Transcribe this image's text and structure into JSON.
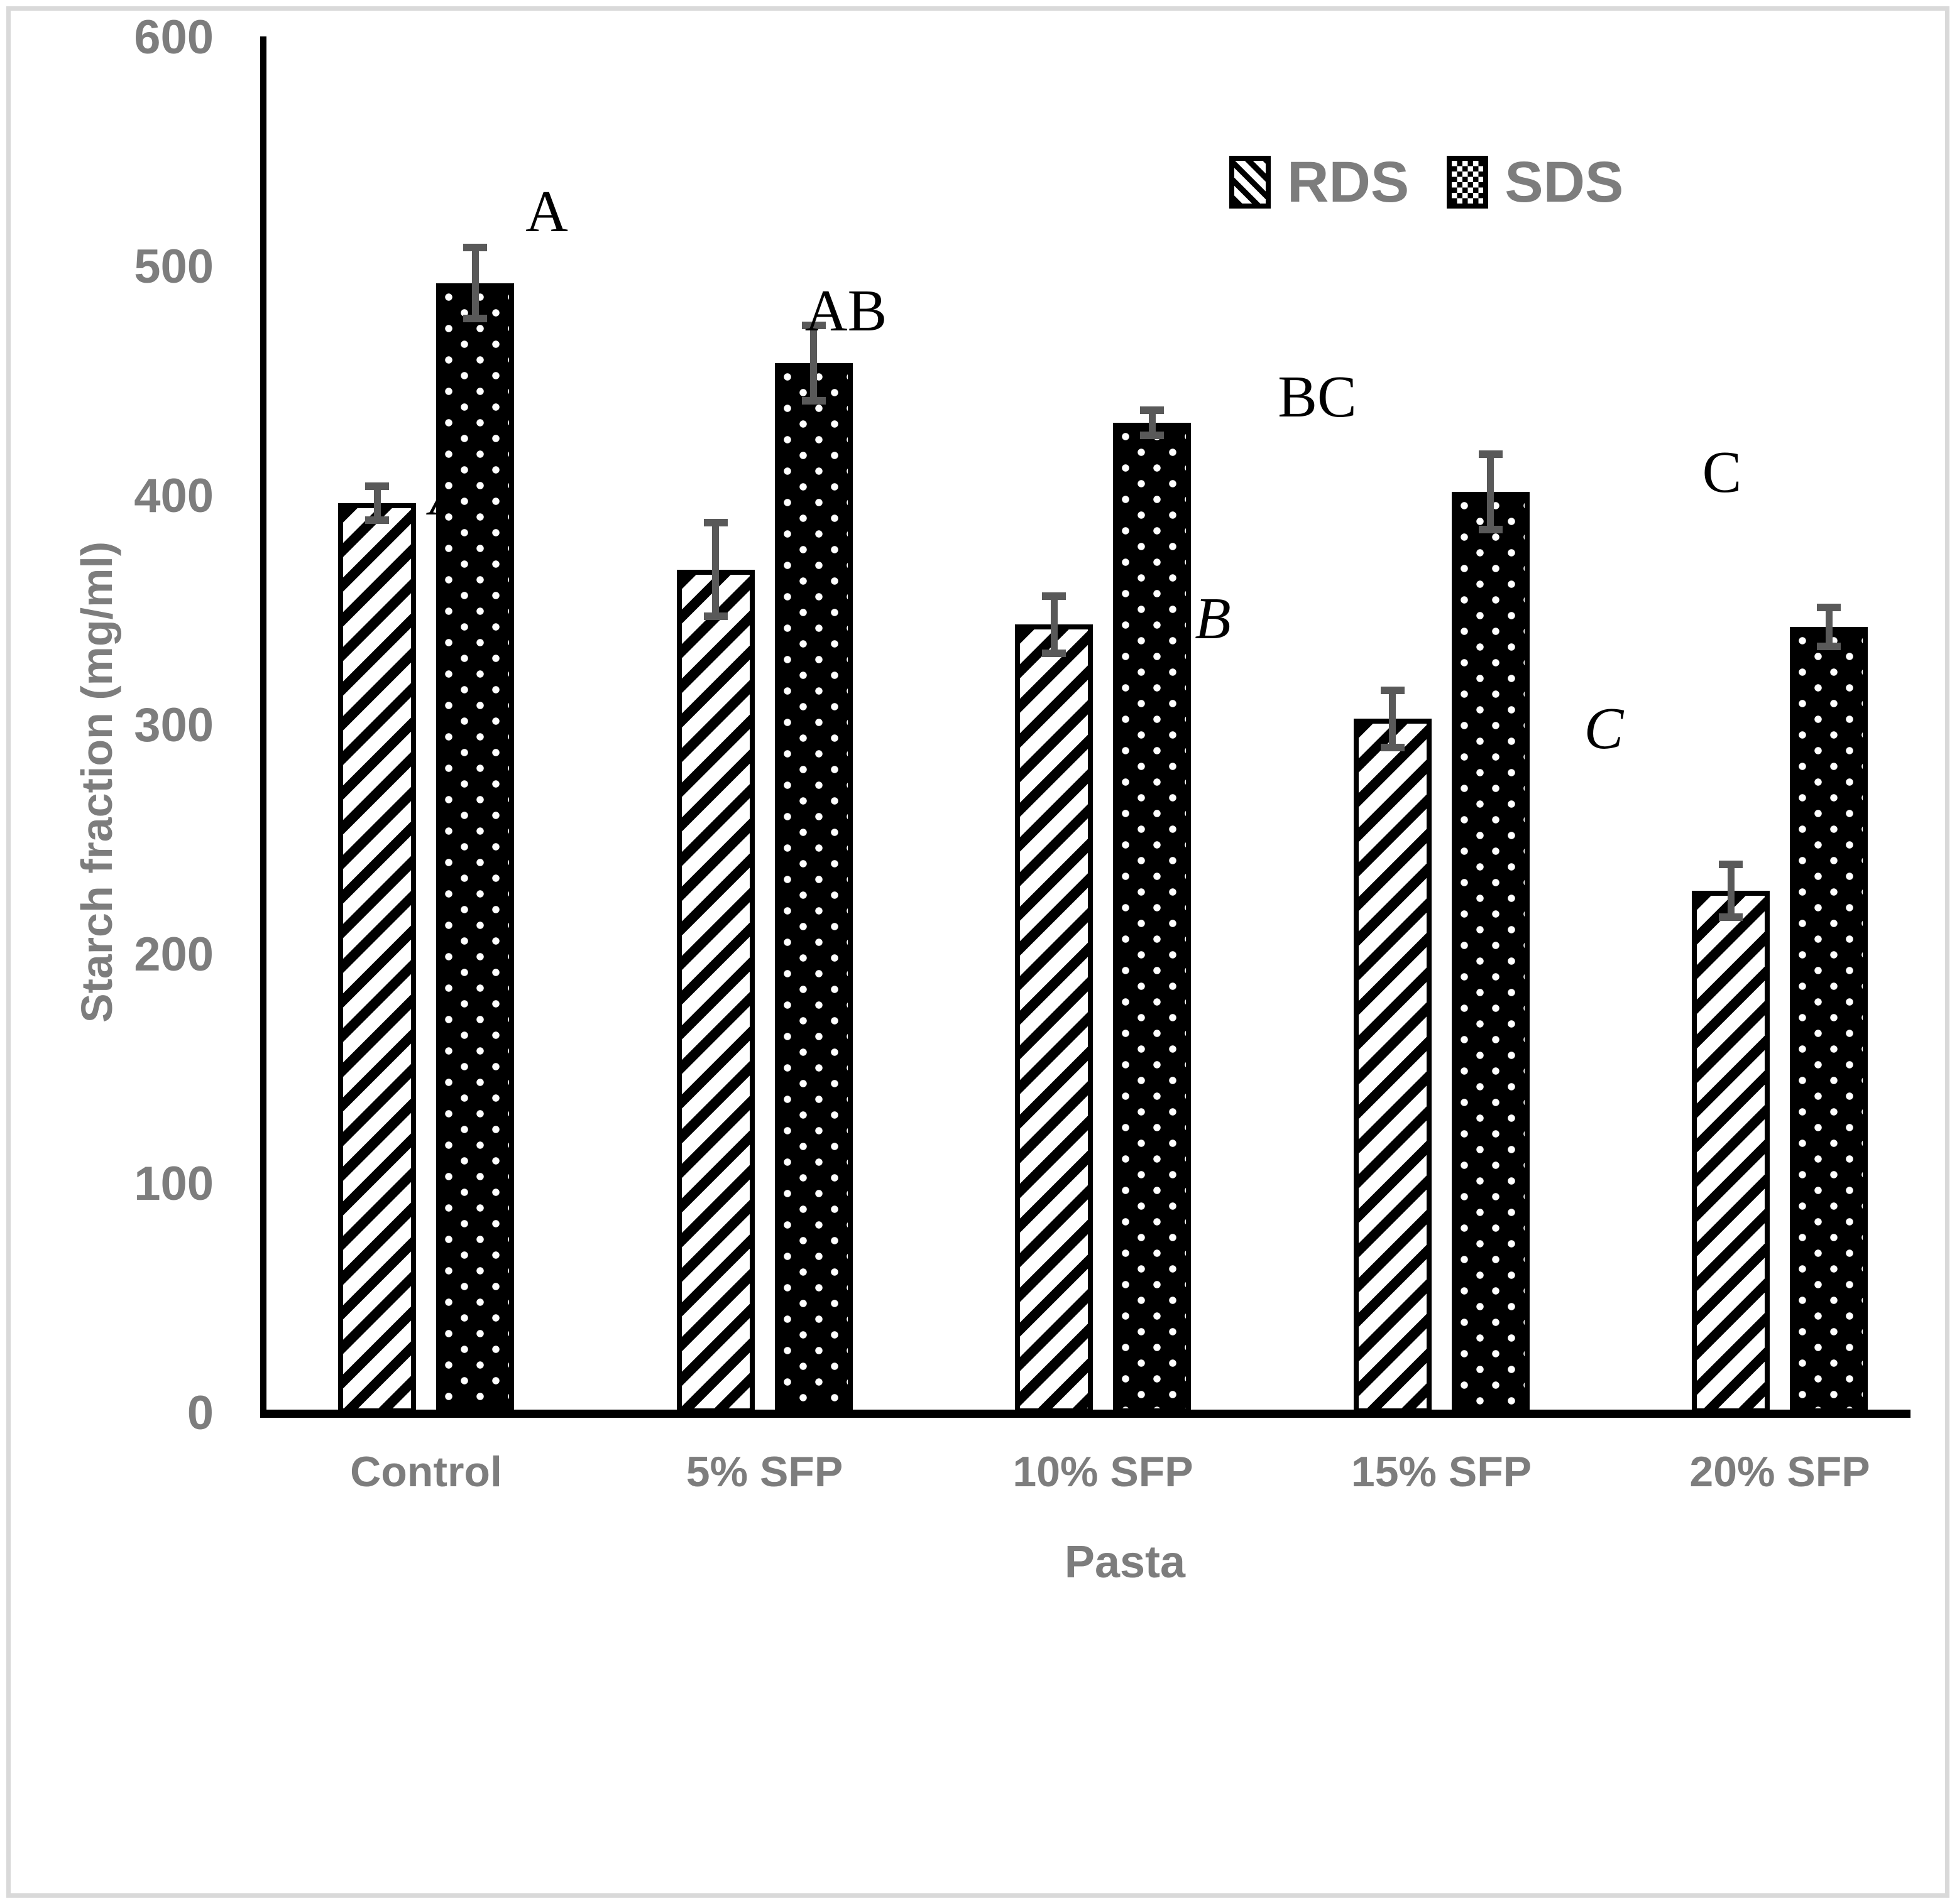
{
  "figure": {
    "kind": "grouped-bar-chart-with-error-bars",
    "background": "#ffffff",
    "frame_color": "#d9d9d9"
  },
  "chart_data": {
    "type": "bar",
    "title": "",
    "xlabel": "Pasta",
    "ylabel": "Starch fraction (mg/ml)",
    "ylim": [
      0,
      600
    ],
    "yticks": [
      0,
      100,
      200,
      300,
      400,
      500,
      600
    ],
    "grid": false,
    "legend_position": "top-right",
    "categories": [
      "Control",
      "5% SFP",
      "10% SFP",
      "15% SFP",
      "20% SFP"
    ],
    "series": [
      {
        "name": "RDS",
        "pattern": "diagonal-hatch",
        "values": [
          397,
          368,
          344,
          303,
          228
        ],
        "errors": [
          8,
          21,
          13,
          13,
          12
        ]
      },
      {
        "name": "SDS",
        "pattern": "black-with-white-dots",
        "values": [
          493,
          458,
          432,
          402,
          343
        ],
        "errors": [
          16,
          17,
          6,
          17,
          9
        ]
      }
    ],
    "significance_letters": {
      "rds": [
        {
          "text": "A",
          "x": 712,
          "y": 788
        },
        {
          "text": "B",
          "x": 1930,
          "y": 985
        },
        {
          "text": "C",
          "x": 2552,
          "y": 1160
        }
      ],
      "sds": [
        {
          "text": "A",
          "x": 870,
          "y": 337
        },
        {
          "text": "AB",
          "x": 1346,
          "y": 495
        },
        {
          "text": "BC",
          "x": 2096,
          "y": 632
        },
        {
          "text": "C",
          "x": 2740,
          "y": 752
        }
      ]
    },
    "colors": {
      "bar_black": "#000000",
      "text_gray": "#7d7d7d",
      "error_gray": "#595959",
      "frame_gray": "#d9d9d9"
    }
  }
}
